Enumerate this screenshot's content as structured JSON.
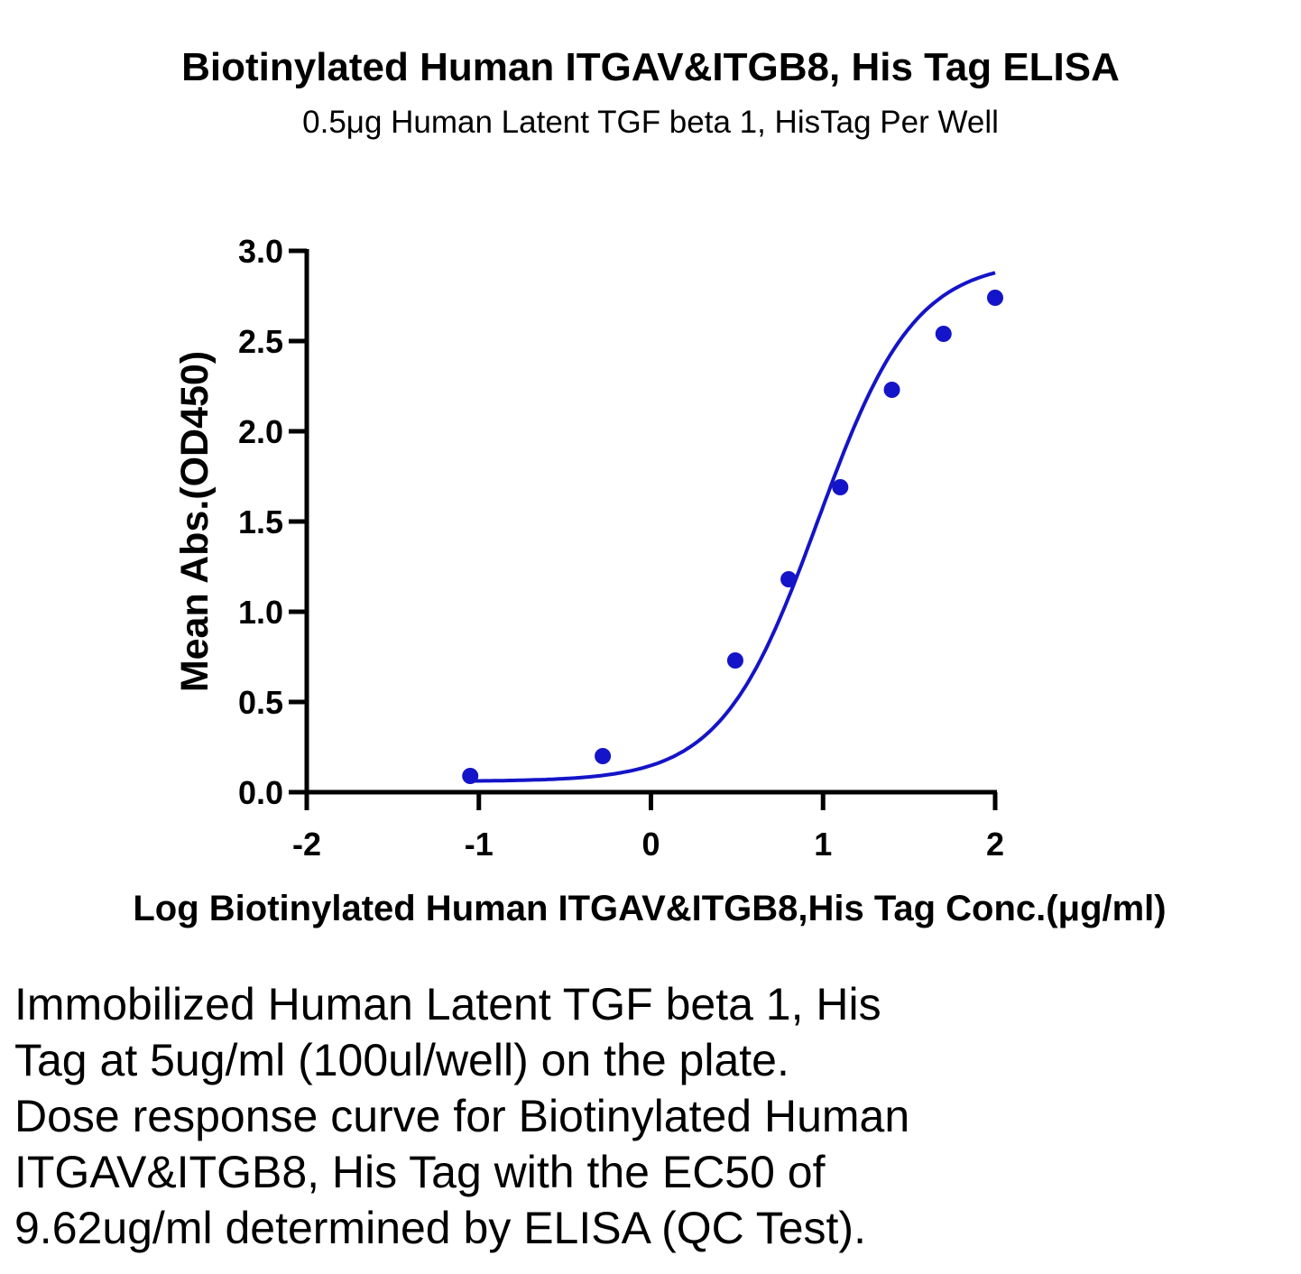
{
  "title": "Biotinylated Human ITGAV&ITGB8, His Tag ELISA",
  "subtitle": "0.5μg Human Latent TGF beta 1, HisTag Per Well",
  "caption_lines": [
    "Immobilized Human Latent TGF beta 1, His",
    "Tag at 5ug/ml (100ul/well) on the plate.",
    "Dose response curve for Biotinylated Human",
    "ITGAV&ITGB8, His Tag with the EC50 of",
    "9.62ug/ml determined by ELISA (QC Test)."
  ],
  "colors": {
    "series": "#1414c8",
    "axis": "#000000"
  },
  "chart_data": {
    "type": "scatter",
    "title": "Biotinylated Human ITGAV&ITGB8, His Tag ELISA",
    "subtitle": "0.5μg Human Latent TGF beta 1, HisTag Per Well",
    "xlabel": "Log Biotinylated Human ITGAV&ITGB8,His Tag Conc.(μg/ml)",
    "ylabel": "Mean Abs.(OD450)",
    "xlim": [
      -2,
      2
    ],
    "ylim": [
      0,
      3
    ],
    "xticks": [
      "-2",
      "-1",
      "0",
      "1",
      "2"
    ],
    "yticks": [
      "0.0",
      "0.5",
      "1.0",
      "1.5",
      "2.0",
      "2.5",
      "3.0"
    ],
    "grid": false,
    "series": [
      {
        "x": [
          -1.05,
          -0.28,
          0.49,
          0.8,
          1.1,
          1.4,
          1.7,
          2.0
        ],
        "y": [
          0.09,
          0.2,
          0.73,
          1.18,
          1.69,
          2.23,
          2.54,
          2.74
        ],
        "fit": "four-parameter logistic"
      }
    ]
  }
}
